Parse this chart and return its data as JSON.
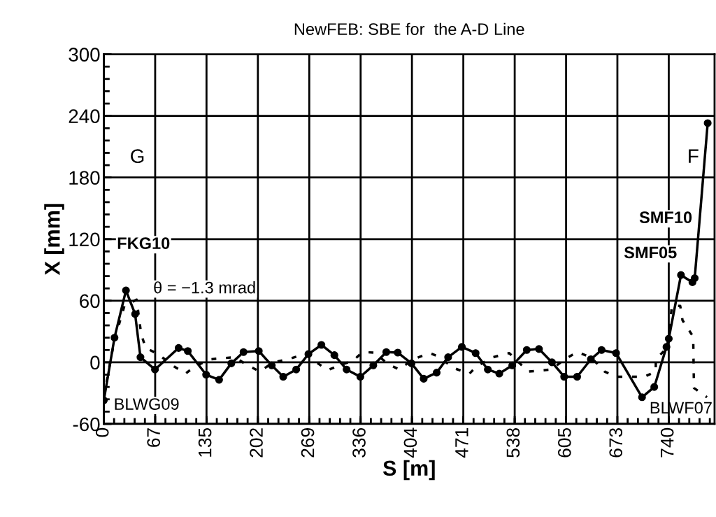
{
  "chart_data": {
    "type": "line",
    "title": "NewFEB: SBE for  the A-D Line",
    "xlabel": "S [m]",
    "ylabel": "X [mm]",
    "xlim": [
      0,
      800
    ],
    "ylim": [
      -60,
      300
    ],
    "xticks": [
      0,
      {
        "value": 67.27,
        "label": "67"
      },
      {
        "value": 134.5,
        "label": "135"
      },
      {
        "value": 201.8,
        "label": "202"
      },
      {
        "value": 269.1,
        "label": "269"
      },
      {
        "value": 336.4,
        "label": "336"
      },
      {
        "value": 403.6,
        "label": "404"
      },
      {
        "value": 470.9,
        "label": "471"
      },
      {
        "value": 538.2,
        "label": "538"
      },
      {
        "value": 605.5,
        "label": "605"
      },
      {
        "value": 672.7,
        "label": "673"
      },
      {
        "value": 740,
        "label": "740"
      }
    ],
    "yticks": [
      -60,
      0,
      60,
      120,
      180,
      240,
      300
    ],
    "grid": true,
    "legend": false,
    "series": [
      {
        "color": "#000000",
        "marker": "circle",
        "line_style": "solid",
        "x": [
          0,
          14,
          29,
          41,
          48,
          67,
          98,
          110,
          134,
          151,
          167,
          183,
          203,
          220,
          235,
          252,
          268,
          285,
          302,
          318,
          336,
          353,
          370,
          385,
          403,
          419,
          436,
          451,
          469,
          487,
          503,
          518,
          535,
          554,
          570,
          587,
          603,
          620,
          638,
          652,
          671,
          705,
          721,
          737,
          740,
          756,
          771,
          774,
          791
        ],
        "values": [
          -37,
          24,
          70,
          47,
          5,
          -7,
          14,
          11,
          -12,
          -17,
          -1,
          10,
          11,
          -3,
          -14,
          -7,
          8,
          17,
          7,
          -7,
          -14,
          -3,
          10,
          9.5,
          -1,
          -16,
          -10,
          5,
          15,
          9,
          -7,
          -11,
          -3,
          12,
          13,
          0,
          -14,
          -14,
          3,
          12,
          9,
          -34,
          -24,
          15,
          23,
          85,
          78,
          82,
          233
        ]
      },
      {
        "color": "#000000",
        "marker": "none",
        "line_style": "dotted",
        "x": [
          0,
          14,
          27,
          43,
          49,
          55,
          67,
          80,
          92,
          107,
          119,
          140,
          171,
          189,
          204,
          222,
          241,
          263,
          293,
          327,
          339,
          354,
          373,
          387,
          405,
          427,
          439,
          458,
          479,
          488,
          510,
          531,
          556,
          586,
          604,
          620,
          638,
          656,
          671,
          708,
          723,
          723,
          739,
          744,
          755,
          758,
          772,
          773,
          790
        ],
        "values": [
          -33,
          22,
          55,
          61,
          27,
          14,
          9.5,
          3,
          -4,
          -11,
          -4,
          3,
          5,
          -3,
          -9,
          0,
          3,
          8,
          -7.5,
          2,
          10,
          9.5,
          -2,
          -7,
          3,
          9,
          5.5,
          -5.5,
          -11,
          -4,
          5,
          9,
          -9,
          -7,
          3,
          10,
          5,
          -9,
          -14,
          -14,
          -9,
          3,
          15,
          55,
          55,
          41,
          25,
          -25,
          -34
        ]
      }
    ],
    "annotations": [
      "FKG10",
      "θ = −1.3 mrad",
      "BLWG09",
      "BLWF07",
      "SMF10",
      "SMF05",
      "G",
      "F"
    ]
  }
}
